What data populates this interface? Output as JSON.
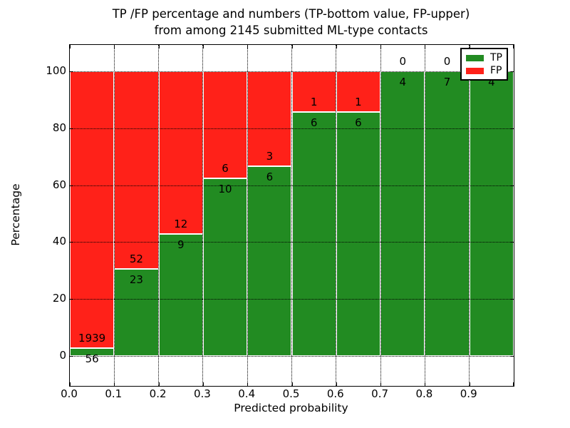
{
  "title_line1": "TP /FP percentage and numbers (TP-bottom value, FP-upper)",
  "title_line2": "from among 2145 submitted ML-type contacts",
  "chart_data": {
    "type": "bar",
    "stacked": true,
    "title": "TP /FP percentage and numbers (TP-bottom value, FP-upper) from among 2145 submitted ML-type contacts",
    "xlabel": "Predicted probability",
    "ylabel": "Percentage",
    "xlim": [
      0.0,
      1.0
    ],
    "ylim": [
      -10.5,
      109.5
    ],
    "grid": "dotted",
    "x_tick_labels": [
      "0.0",
      "0.1",
      "0.2",
      "0.3",
      "0.4",
      "0.5",
      "0.6",
      "0.7",
      "0.8",
      "0.9"
    ],
    "y_ticks": [
      0,
      20,
      40,
      60,
      80,
      100
    ],
    "bins": [
      "0.0-0.1",
      "0.1-0.2",
      "0.2-0.3",
      "0.3-0.4",
      "0.4-0.5",
      "0.5-0.6",
      "0.6-0.7",
      "0.7-0.8",
      "0.8-0.9",
      "0.9-1.0"
    ],
    "series": [
      {
        "name": "TP",
        "color": "#228b22",
        "counts": [
          56,
          23,
          9,
          10,
          6,
          6,
          6,
          4,
          7,
          4
        ],
        "percentages": [
          2.81,
          30.67,
          42.86,
          62.5,
          66.67,
          85.71,
          85.71,
          100,
          100,
          100
        ]
      },
      {
        "name": "FP",
        "color": "#ff2119",
        "counts": [
          1939,
          52,
          12,
          6,
          3,
          1,
          1,
          0,
          0,
          0
        ],
        "percentages": [
          97.19,
          69.33,
          57.14,
          37.5,
          33.33,
          14.29,
          14.29,
          0,
          0,
          0
        ]
      }
    ],
    "legend": {
      "position": "upper right",
      "entries": [
        {
          "label": "TP",
          "color": "#228b22"
        },
        {
          "label": "FP",
          "color": "#ff2119"
        }
      ]
    }
  }
}
